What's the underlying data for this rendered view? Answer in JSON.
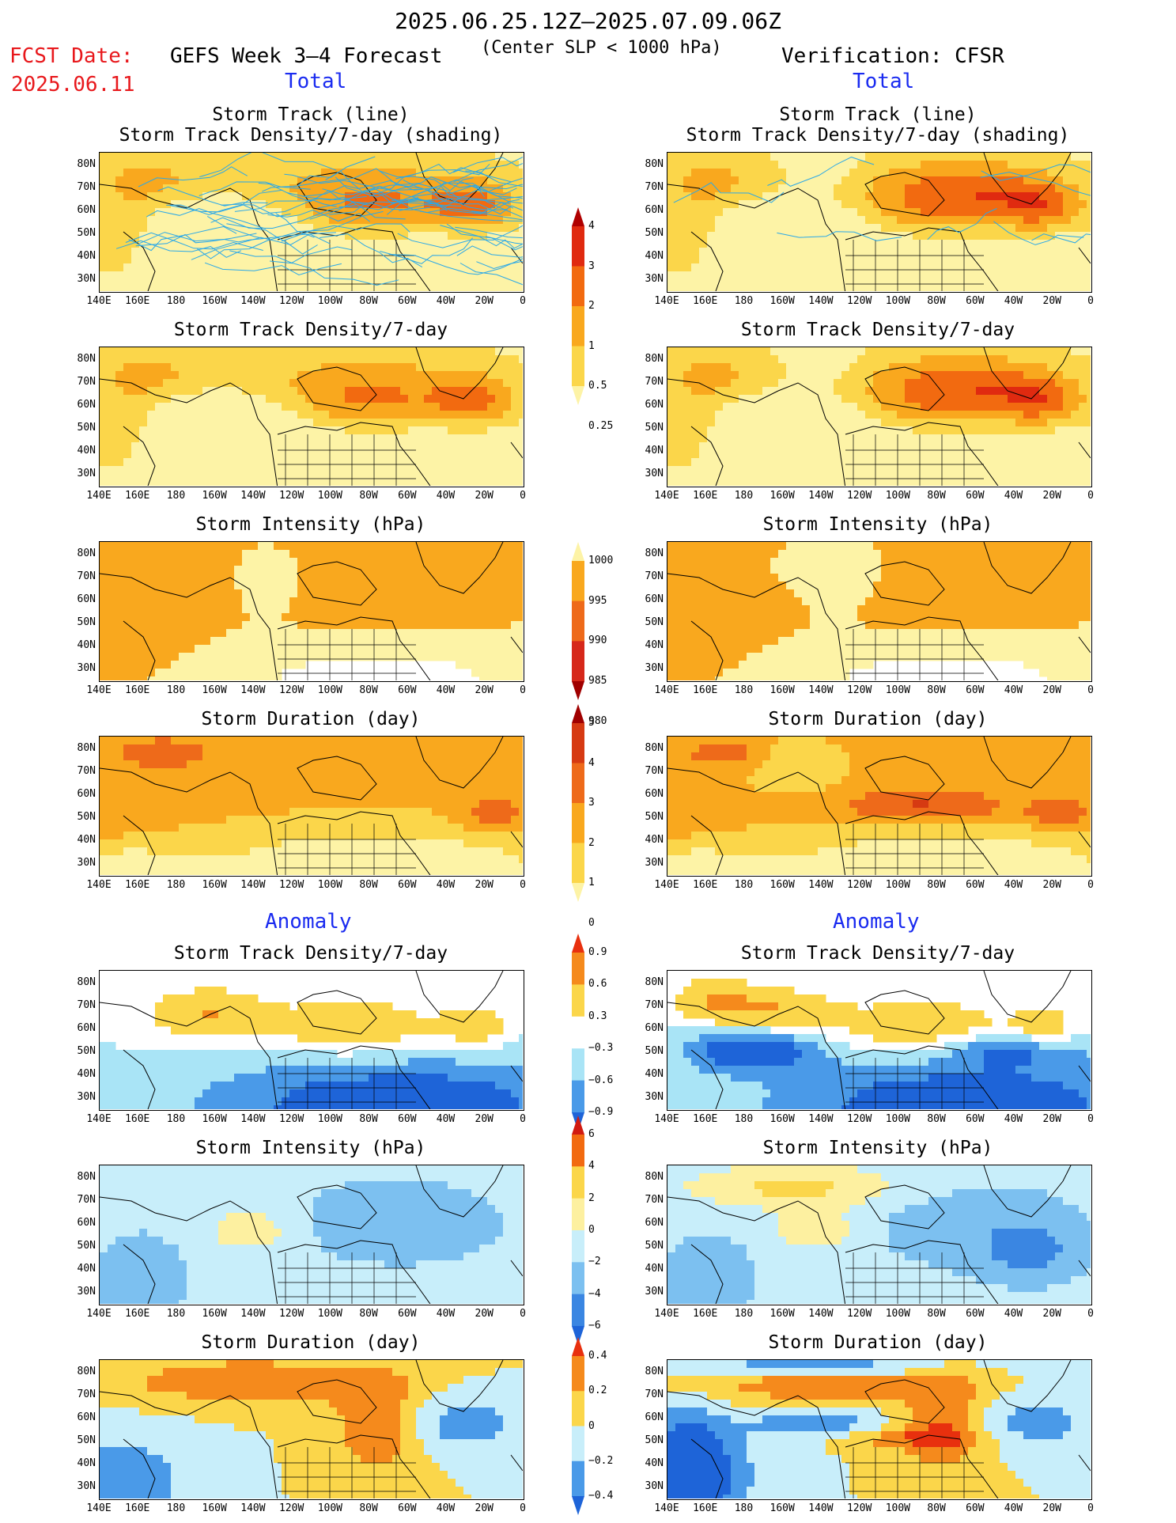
{
  "header": {
    "date_range": "2025.06.25.12Z–2025.07.09.06Z",
    "subtitle": "(Center SLP < 1000 hPa)",
    "fcst_label": "FCST Date:",
    "fcst_date": "2025.06.11",
    "forecast_title": "GEFS Week 3–4 Forecast",
    "verification_title": "Verification: CFSR"
  },
  "sections": {
    "total": "Total",
    "anomaly": "Anomaly"
  },
  "panel_titles": {
    "track_line": "Storm Track (line)",
    "track_line_sub": "Storm Track Density/7‑day (shading)",
    "density": "Storm Track Density/7‑day",
    "intensity": "Storm Intensity (hPa)",
    "duration": "Storm Duration (day)"
  },
  "axes": {
    "lat_labels": [
      "80N",
      "70N",
      "60N",
      "50N",
      "40N",
      "30N"
    ],
    "lon_labels": [
      "140E",
      "160E",
      "180",
      "160W",
      "140W",
      "120W",
      "100W",
      "80W",
      "60W",
      "40W",
      "20W",
      "0"
    ]
  },
  "colorbars": {
    "density_total": {
      "labels": [
        "4",
        "3",
        "2",
        "1",
        "0.5",
        "0.25"
      ],
      "colors": [
        "#b00000",
        "#e02a10",
        "#f26a10",
        "#f9a81e",
        "#fbd64a",
        "#fdf3a6"
      ]
    },
    "intensity_total": {
      "labels": [
        "1000",
        "995",
        "990",
        "985",
        "980"
      ],
      "colors": [
        "#fdf3a6",
        "#f9a81e",
        "#ee6a1a",
        "#d6281a",
        "#a00000"
      ]
    },
    "duration_total": {
      "labels": [
        "5",
        "4",
        "3",
        "2",
        "1",
        "0"
      ],
      "colors": [
        "#a00000",
        "#d63a12",
        "#ee6a1a",
        "#f9a81e",
        "#fbd64a",
        "#fdf3a6"
      ]
    },
    "density_anom": {
      "labels": [
        "0.9",
        "0.6",
        "0.3",
        "−0.3",
        "−0.6",
        "−0.9"
      ],
      "colors": [
        "#e8300e",
        "#f58a1c",
        "#fbd64a",
        "#ffffff",
        "#a9e4f6",
        "#4a9ae8",
        "#1e64d8"
      ]
    },
    "intensity_anom": {
      "labels": [
        "6",
        "4",
        "2",
        "0",
        "−2",
        "−4",
        "−6"
      ],
      "colors": [
        "#d11a10",
        "#f26a10",
        "#fbd64a",
        "#fdf0a0",
        "#c8eefa",
        "#7cc0f0",
        "#3a86e2",
        "#1e64d8"
      ]
    },
    "duration_anom": {
      "labels": [
        "0.4",
        "0.2",
        "0",
        "−0.2",
        "−0.4"
      ],
      "colors": [
        "#e8300e",
        "#f58a1c",
        "#fbd64a",
        "#c8eefa",
        "#4a9ae8",
        "#1e64d8"
      ]
    }
  },
  "colors": {
    "track_line": "#2aa8e8",
    "text_red": "#e8181c",
    "text_blue": "#1a2bf0"
  }
}
